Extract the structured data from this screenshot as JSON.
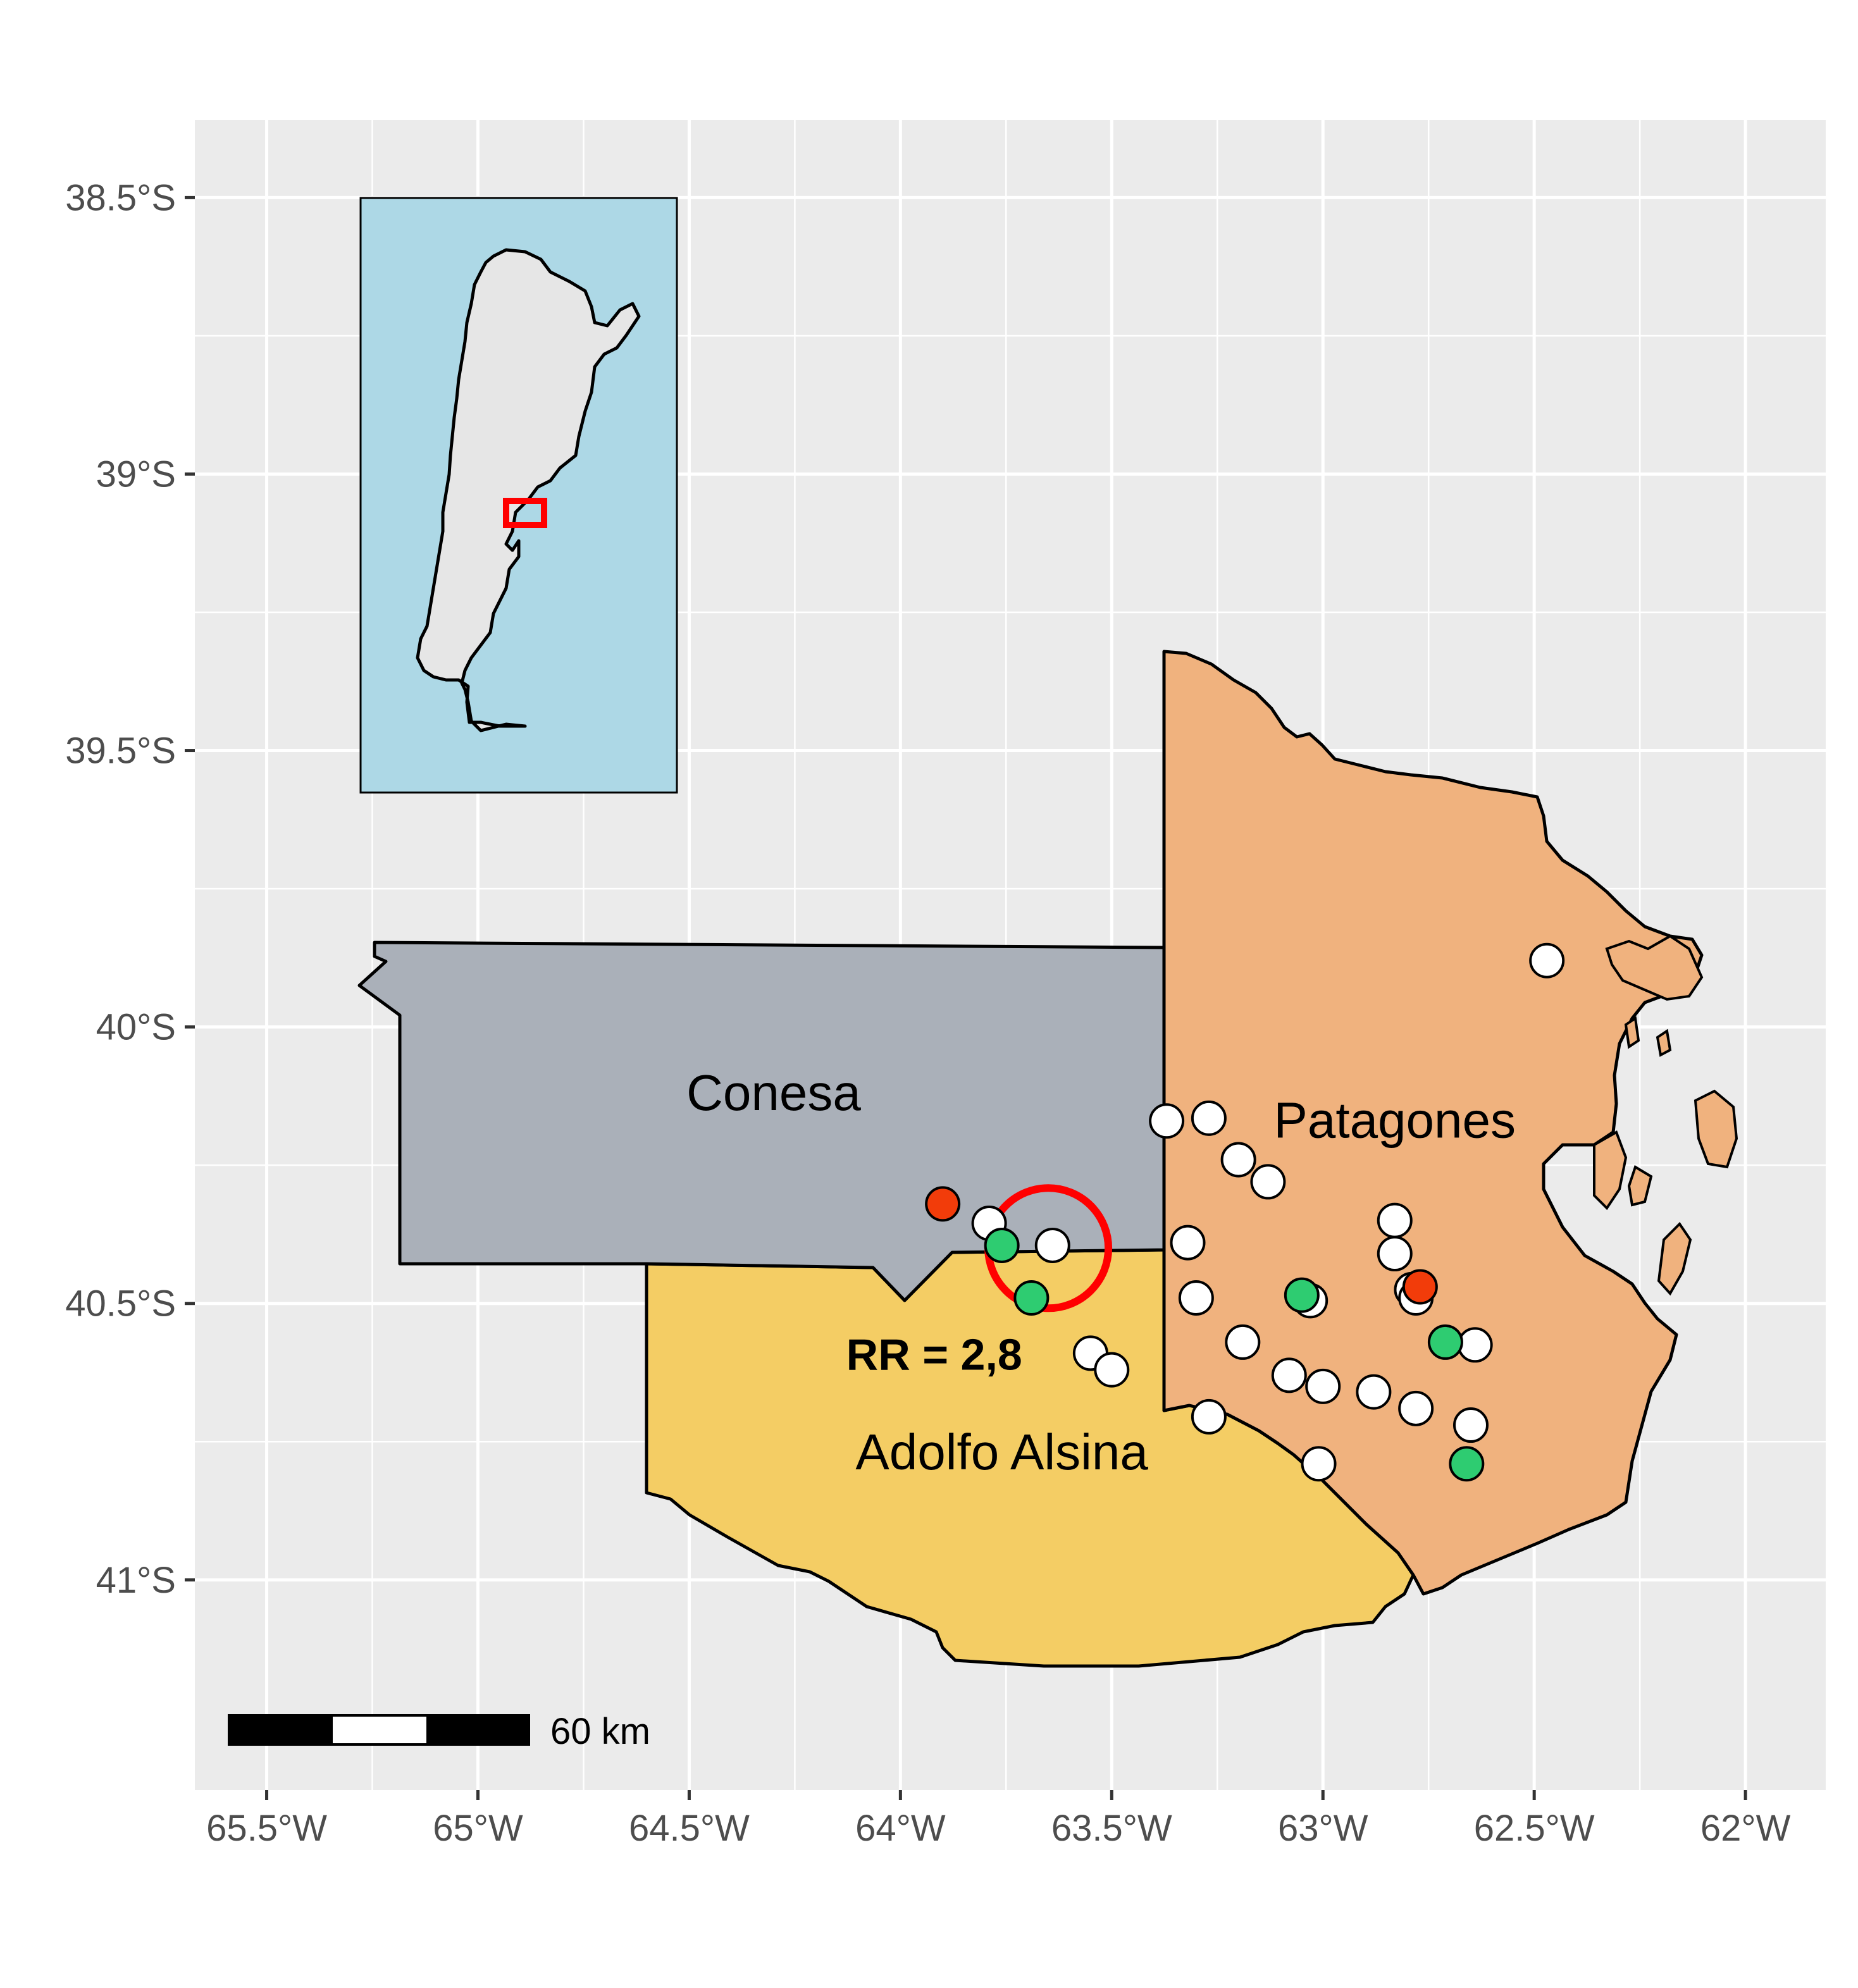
{
  "map": {
    "panel_background": "#ebebeb",
    "grid_color": "#ffffff",
    "axes": {
      "x_ticks": [
        {
          "value": -65.5,
          "label": "65.5°W"
        },
        {
          "value": -65.0,
          "label": "65°W"
        },
        {
          "value": -64.5,
          "label": "64.5°W"
        },
        {
          "value": -64.0,
          "label": "64°W"
        },
        {
          "value": -63.5,
          "label": "63.5°W"
        },
        {
          "value": -63.0,
          "label": "63°W"
        },
        {
          "value": -62.5,
          "label": "62.5°W"
        },
        {
          "value": -62.0,
          "label": "62°W"
        }
      ],
      "y_ticks": [
        {
          "value": -38.5,
          "label": "38.5°S"
        },
        {
          "value": -39.0,
          "label": "39°S"
        },
        {
          "value": -39.5,
          "label": "39.5°S"
        },
        {
          "value": -40.0,
          "label": "40°S"
        },
        {
          "value": -40.5,
          "label": "40.5°S"
        },
        {
          "value": -41.0,
          "label": "41°S"
        }
      ],
      "xlim": [
        -65.67,
        -61.81
      ],
      "ylim": [
        -41.38,
        -38.36
      ]
    },
    "regions": [
      {
        "name": "Conesa",
        "label": "Conesa",
        "fill": "#aab0b9",
        "label_lon": -64.3,
        "label_lat": -40.15
      },
      {
        "name": "Patagones",
        "label": "Patagones",
        "fill": "#f0b27e",
        "label_lon": -62.83,
        "label_lat": -40.2
      },
      {
        "name": "Adolfo Alsina",
        "label": "Adolfo Alsina",
        "fill": "#f4cd64",
        "label_lon": -63.76,
        "label_lat": -40.8
      }
    ],
    "cluster": {
      "lon": -63.65,
      "lat": -40.4,
      "color": "#ff0000",
      "label": "RR = 2,8",
      "label_lon": -63.92,
      "label_lat": -40.62
    },
    "point_colors": {
      "white": "#ffffff",
      "green": "#2ecc71",
      "red": "#f23c0a"
    },
    "points": [
      {
        "lon": -62.47,
        "lat": -39.88,
        "color": "white"
      },
      {
        "lon": -63.37,
        "lat": -40.17,
        "color": "white"
      },
      {
        "lon": -63.27,
        "lat": -40.165,
        "color": "white"
      },
      {
        "lon": -63.2,
        "lat": -40.24,
        "color": "white"
      },
      {
        "lon": -63.13,
        "lat": -40.28,
        "color": "white"
      },
      {
        "lon": -63.32,
        "lat": -40.39,
        "color": "white"
      },
      {
        "lon": -63.3,
        "lat": -40.49,
        "color": "white"
      },
      {
        "lon": -63.19,
        "lat": -40.57,
        "color": "white"
      },
      {
        "lon": -63.08,
        "lat": -40.63,
        "color": "white"
      },
      {
        "lon": -63.0,
        "lat": -40.65,
        "color": "white"
      },
      {
        "lon": -62.88,
        "lat": -40.66,
        "color": "white"
      },
      {
        "lon": -62.78,
        "lat": -40.69,
        "color": "white"
      },
      {
        "lon": -62.65,
        "lat": -40.72,
        "color": "white"
      },
      {
        "lon": -63.01,
        "lat": -40.79,
        "color": "white"
      },
      {
        "lon": -63.27,
        "lat": -40.705,
        "color": "white"
      },
      {
        "lon": -62.83,
        "lat": -40.35,
        "color": "white"
      },
      {
        "lon": -62.83,
        "lat": -40.41,
        "color": "white"
      },
      {
        "lon": -62.79,
        "lat": -40.475,
        "color": "white"
      },
      {
        "lon": -62.78,
        "lat": -40.49,
        "color": "white"
      },
      {
        "lon": -62.64,
        "lat": -40.575,
        "color": "white"
      },
      {
        "lon": -63.03,
        "lat": -40.495,
        "color": "white"
      },
      {
        "lon": -63.79,
        "lat": -40.355,
        "color": "white"
      },
      {
        "lon": -63.64,
        "lat": -40.395,
        "color": "white"
      },
      {
        "lon": -63.55,
        "lat": -40.59,
        "color": "white"
      },
      {
        "lon": -63.5,
        "lat": -40.62,
        "color": "white"
      },
      {
        "lon": -63.76,
        "lat": -40.395,
        "color": "green"
      },
      {
        "lon": -63.69,
        "lat": -40.49,
        "color": "green"
      },
      {
        "lon": -63.05,
        "lat": -40.485,
        "color": "green"
      },
      {
        "lon": -62.71,
        "lat": -40.57,
        "color": "green"
      },
      {
        "lon": -62.66,
        "lat": -40.79,
        "color": "green"
      },
      {
        "lon": -63.9,
        "lat": -40.32,
        "color": "red"
      },
      {
        "lon": -62.77,
        "lat": -40.47,
        "color": "red"
      }
    ],
    "scale_bar": {
      "label": "60 km"
    },
    "inset": {
      "background": "#add8e6",
      "land_fill": "#e6e6e6",
      "highlight_color": "#ff0000"
    }
  }
}
